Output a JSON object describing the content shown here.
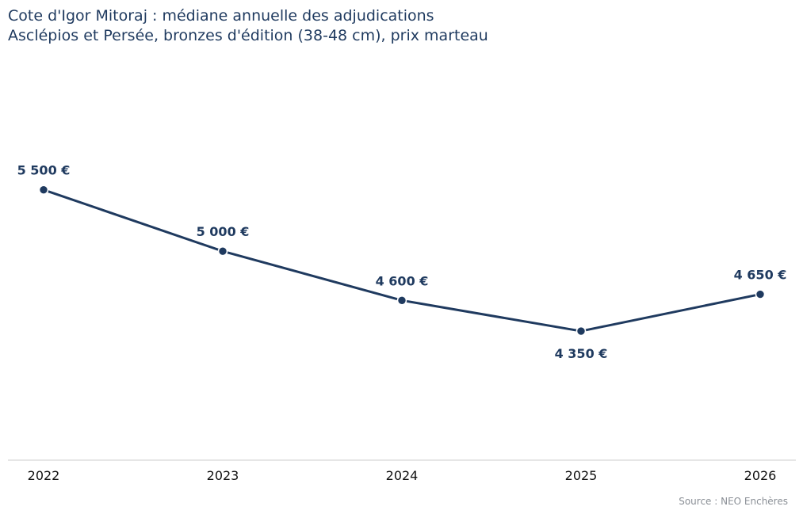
{
  "chart_data": {
    "type": "line",
    "title": "Cote d'Igor Mitoraj : médiane annuelle des adjudications",
    "subtitle": "Asclépios et Persée, bronzes d'édition (38-48 cm), prix marteau",
    "x": [
      "2022",
      "2023",
      "2024",
      "2025",
      "2026"
    ],
    "series": [
      {
        "values": [
          5500,
          5000,
          4600,
          4350,
          4650
        ],
        "labels": [
          "5 500 €",
          "5 000 €",
          "4 600 €",
          "4 350 €",
          "4 650 €"
        ],
        "color": "#1f3a5f"
      }
    ],
    "ylim": [
      3300,
      6400
    ],
    "grid": false,
    "legend": "none",
    "y_axis_visible": false
  },
  "source": "Source : NEO Enchères",
  "colors": {
    "line": "#1f3a5f",
    "text": "#1f3a5f",
    "axis": "#cccccc",
    "source": "#8a8f96"
  }
}
